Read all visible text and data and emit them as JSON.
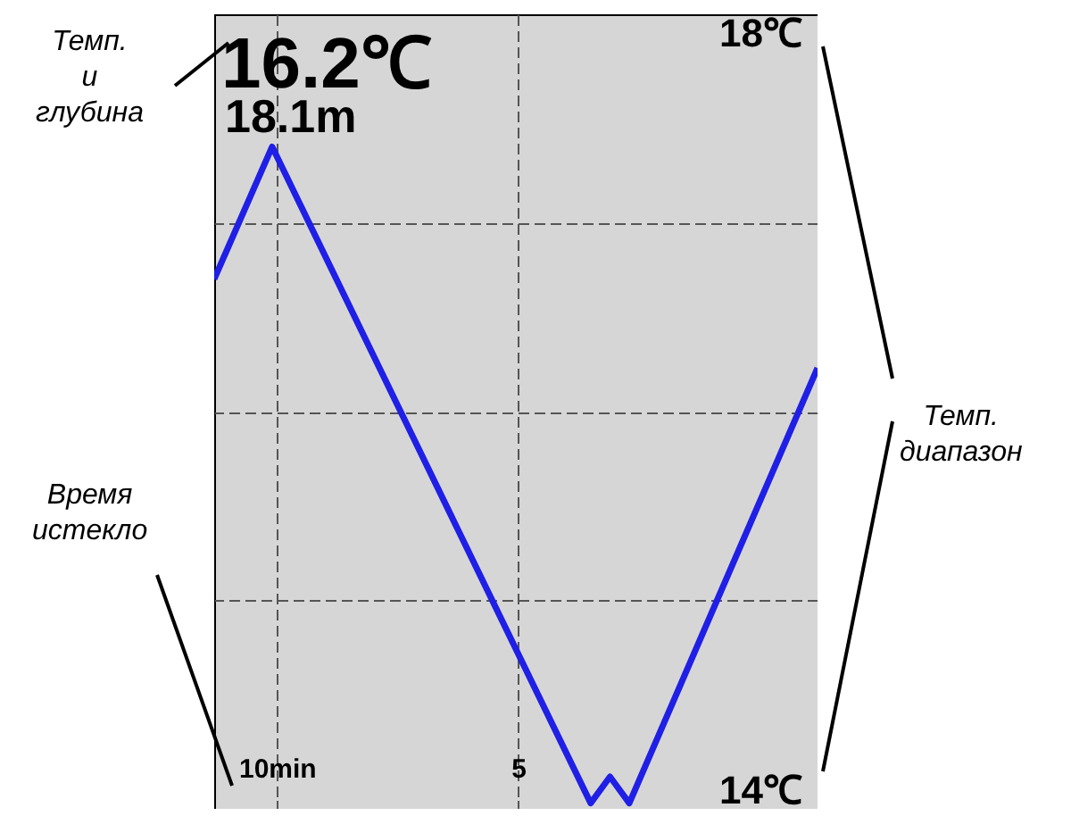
{
  "chart_data": {
    "type": "line",
    "x": [
      11.3,
      10.1,
      3.5,
      3.1,
      2.7,
      -1.2
    ],
    "series": [
      {
        "color": "#1f1fe6",
        "values": [
          16.7,
          17.4,
          13.93,
          14.07,
          13.93,
          16.23
        ]
      }
    ],
    "xlim": [
      11.3,
      -1.2
    ],
    "xticks": [
      {
        "value": 10,
        "label": "10min"
      },
      {
        "value": 5,
        "label": "5"
      }
    ],
    "ylim": [
      13.9,
      18.1
    ],
    "yticks": [
      {
        "value": 14,
        "label": "14℃"
      },
      {
        "value": 15,
        "label": null
      },
      {
        "value": 16,
        "label": null
      },
      {
        "value": 17,
        "label": null
      },
      {
        "value": 18,
        "label": "18℃"
      }
    ],
    "grid": true,
    "line_style": "solid",
    "annotations": [
      "16.2℃",
      "18.1m",
      "Темп.\nи\nглубина",
      "Время\nистекло",
      "Темп.\nдиапазон"
    ]
  }
}
